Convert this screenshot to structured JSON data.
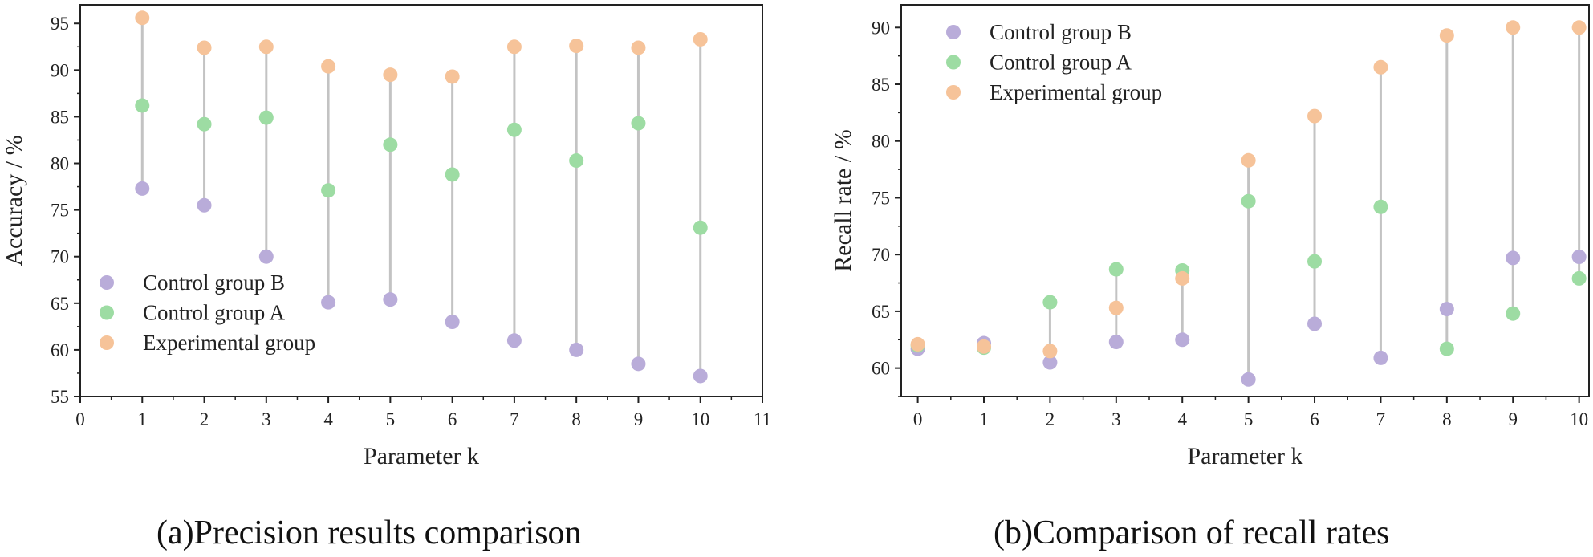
{
  "chart_data": [
    {
      "type": "scatter",
      "title": "",
      "caption": "(a)Precision results comparison",
      "xlabel": "Parameter k",
      "ylabel": "Accuracy / %",
      "xlim": [
        0,
        11
      ],
      "ylim": [
        55,
        97
      ],
      "xticks": [
        0,
        1,
        2,
        3,
        4,
        5,
        6,
        7,
        8,
        9,
        10,
        11
      ],
      "yticks": [
        55,
        60,
        65,
        70,
        75,
        80,
        85,
        90,
        95
      ],
      "legend_position": "bottom-left",
      "x": [
        1,
        2,
        3,
        4,
        5,
        6,
        7,
        8,
        9,
        10
      ],
      "series": [
        {
          "name": "Control group B",
          "color": "#b9acd9",
          "values": [
            77.3,
            75.5,
            70.0,
            65.1,
            65.4,
            63.0,
            61.0,
            60.0,
            58.5,
            57.2
          ]
        },
        {
          "name": "Control group A",
          "color": "#9ddca3",
          "values": [
            86.2,
            84.2,
            84.9,
            77.1,
            82.0,
            78.8,
            83.6,
            80.3,
            84.3,
            73.1
          ]
        },
        {
          "name": "Experimental group",
          "color": "#f6c399",
          "values": [
            95.6,
            92.4,
            92.5,
            90.4,
            89.5,
            89.3,
            92.5,
            92.6,
            92.4,
            93.3
          ]
        }
      ]
    },
    {
      "type": "scatter",
      "title": "",
      "caption": "(b)Comparison of recall rates",
      "xlabel": "Parameter k",
      "ylabel": "Recall rate / %",
      "xlim": [
        -0.25,
        10.15
      ],
      "ylim": [
        57.5,
        92
      ],
      "xticks": [
        0,
        1,
        2,
        3,
        4,
        5,
        6,
        7,
        8,
        9,
        10
      ],
      "yticks": [
        60,
        65,
        70,
        75,
        80,
        85,
        90
      ],
      "legend_position": "top-left",
      "x": [
        0,
        1,
        2,
        3,
        4,
        5,
        6,
        7,
        8,
        9,
        10
      ],
      "series": [
        {
          "name": "Control group B",
          "color": "#b9acd9",
          "values": [
            61.7,
            62.2,
            60.5,
            62.3,
            62.5,
            59.0,
            63.9,
            60.9,
            65.2,
            69.7,
            69.8
          ]
        },
        {
          "name": "Control group A",
          "color": "#9ddca3",
          "values": [
            62.0,
            61.8,
            65.8,
            68.7,
            68.6,
            74.7,
            69.4,
            74.2,
            61.7,
            64.8,
            67.9
          ]
        },
        {
          "name": "Experimental group",
          "color": "#f6c399",
          "values": [
            62.1,
            61.9,
            61.5,
            65.3,
            67.9,
            78.3,
            82.2,
            86.5,
            89.3,
            90.0,
            90.0
          ]
        }
      ]
    }
  ],
  "colors": {
    "connector": "#c3c3c3",
    "axis": "#222222"
  }
}
